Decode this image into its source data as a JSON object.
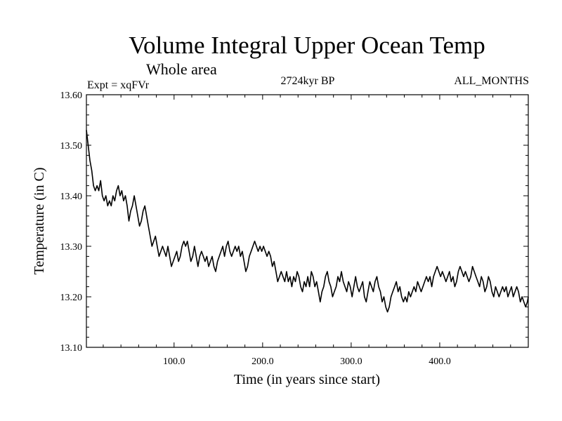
{
  "chart_data": {
    "type": "line",
    "title": "Volume Integral Upper Ocean Temp",
    "subtitle": "Whole area",
    "experiment": "Expt = xqFVr",
    "period": "2724kyr BP",
    "months": "ALL_MONTHS",
    "xlabel": "Time (in years since start)",
    "ylabel": "Temperature (in C)",
    "xlim": [
      1,
      500
    ],
    "ylim": [
      13.1,
      13.6
    ],
    "x_ticks": [
      100,
      200,
      300,
      400
    ],
    "x_tick_labels": [
      "100.0",
      "200.0",
      "300.0",
      "400.0"
    ],
    "y_ticks": [
      13.1,
      13.2,
      13.3,
      13.4,
      13.5,
      13.6
    ],
    "y_tick_labels": [
      "13.10",
      "13.20",
      "13.30",
      "13.40",
      "13.50",
      "13.60"
    ],
    "grid": false,
    "series": [
      {
        "name": "Volume Integral Upper Ocean Temp",
        "color": "#000000",
        "points": [
          [
            1,
            13.53
          ],
          [
            3,
            13.5
          ],
          [
            5,
            13.47
          ],
          [
            7,
            13.45
          ],
          [
            9,
            13.42
          ],
          [
            11,
            13.41
          ],
          [
            13,
            13.42
          ],
          [
            15,
            13.41
          ],
          [
            17,
            13.43
          ],
          [
            19,
            13.4
          ],
          [
            21,
            13.39
          ],
          [
            23,
            13.4
          ],
          [
            25,
            13.38
          ],
          [
            27,
            13.39
          ],
          [
            29,
            13.38
          ],
          [
            31,
            13.4
          ],
          [
            33,
            13.39
          ],
          [
            35,
            13.41
          ],
          [
            37,
            13.42
          ],
          [
            39,
            13.4
          ],
          [
            41,
            13.41
          ],
          [
            43,
            13.39
          ],
          [
            45,
            13.4
          ],
          [
            47,
            13.38
          ],
          [
            49,
            13.35
          ],
          [
            51,
            13.37
          ],
          [
            53,
            13.38
          ],
          [
            55,
            13.4
          ],
          [
            57,
            13.38
          ],
          [
            59,
            13.36
          ],
          [
            61,
            13.34
          ],
          [
            63,
            13.35
          ],
          [
            65,
            13.37
          ],
          [
            67,
            13.38
          ],
          [
            69,
            13.36
          ],
          [
            71,
            13.34
          ],
          [
            73,
            13.32
          ],
          [
            75,
            13.3
          ],
          [
            77,
            13.31
          ],
          [
            79,
            13.32
          ],
          [
            81,
            13.3
          ],
          [
            83,
            13.28
          ],
          [
            85,
            13.29
          ],
          [
            87,
            13.3
          ],
          [
            89,
            13.29
          ],
          [
            91,
            13.28
          ],
          [
            93,
            13.3
          ],
          [
            95,
            13.28
          ],
          [
            97,
            13.26
          ],
          [
            99,
            13.27
          ],
          [
            101,
            13.28
          ],
          [
            103,
            13.29
          ],
          [
            105,
            13.27
          ],
          [
            107,
            13.28
          ],
          [
            109,
            13.3
          ],
          [
            111,
            13.31
          ],
          [
            113,
            13.3
          ],
          [
            115,
            13.31
          ],
          [
            117,
            13.29
          ],
          [
            119,
            13.27
          ],
          [
            121,
            13.28
          ],
          [
            123,
            13.3
          ],
          [
            125,
            13.28
          ],
          [
            127,
            13.26
          ],
          [
            129,
            13.28
          ],
          [
            131,
            13.29
          ],
          [
            133,
            13.28
          ],
          [
            135,
            13.27
          ],
          [
            137,
            13.28
          ],
          [
            139,
            13.26
          ],
          [
            141,
            13.27
          ],
          [
            143,
            13.28
          ],
          [
            145,
            13.26
          ],
          [
            147,
            13.25
          ],
          [
            149,
            13.27
          ],
          [
            151,
            13.28
          ],
          [
            153,
            13.29
          ],
          [
            155,
            13.3
          ],
          [
            157,
            13.28
          ],
          [
            159,
            13.3
          ],
          [
            161,
            13.31
          ],
          [
            163,
            13.29
          ],
          [
            165,
            13.28
          ],
          [
            167,
            13.29
          ],
          [
            169,
            13.3
          ],
          [
            171,
            13.29
          ],
          [
            173,
            13.3
          ],
          [
            175,
            13.28
          ],
          [
            177,
            13.29
          ],
          [
            179,
            13.27
          ],
          [
            181,
            13.25
          ],
          [
            183,
            13.26
          ],
          [
            185,
            13.28
          ],
          [
            187,
            13.29
          ],
          [
            189,
            13.3
          ],
          [
            191,
            13.31
          ],
          [
            193,
            13.3
          ],
          [
            195,
            13.29
          ],
          [
            197,
            13.3
          ],
          [
            199,
            13.29
          ],
          [
            201,
            13.3
          ],
          [
            203,
            13.29
          ],
          [
            205,
            13.28
          ],
          [
            207,
            13.29
          ],
          [
            209,
            13.28
          ],
          [
            211,
            13.26
          ],
          [
            213,
            13.27
          ],
          [
            215,
            13.25
          ],
          [
            217,
            13.23
          ],
          [
            219,
            13.24
          ],
          [
            221,
            13.25
          ],
          [
            223,
            13.24
          ],
          [
            225,
            13.23
          ],
          [
            227,
            13.25
          ],
          [
            229,
            13.23
          ],
          [
            231,
            13.24
          ],
          [
            233,
            13.22
          ],
          [
            235,
            13.24
          ],
          [
            237,
            13.23
          ],
          [
            239,
            13.25
          ],
          [
            241,
            13.24
          ],
          [
            243,
            13.22
          ],
          [
            245,
            13.21
          ],
          [
            247,
            13.23
          ],
          [
            249,
            13.22
          ],
          [
            251,
            13.24
          ],
          [
            253,
            13.22
          ],
          [
            255,
            13.25
          ],
          [
            257,
            13.24
          ],
          [
            259,
            13.22
          ],
          [
            261,
            13.23
          ],
          [
            263,
            13.21
          ],
          [
            265,
            13.19
          ],
          [
            267,
            13.21
          ],
          [
            269,
            13.22
          ],
          [
            271,
            13.24
          ],
          [
            273,
            13.25
          ],
          [
            275,
            13.23
          ],
          [
            277,
            13.22
          ],
          [
            279,
            13.2
          ],
          [
            281,
            13.21
          ],
          [
            283,
            13.22
          ],
          [
            285,
            13.24
          ],
          [
            287,
            13.23
          ],
          [
            289,
            13.25
          ],
          [
            291,
            13.23
          ],
          [
            293,
            13.22
          ],
          [
            295,
            13.21
          ],
          [
            297,
            13.23
          ],
          [
            299,
            13.22
          ],
          [
            301,
            13.2
          ],
          [
            303,
            13.22
          ],
          [
            305,
            13.24
          ],
          [
            307,
            13.22
          ],
          [
            309,
            13.21
          ],
          [
            311,
            13.22
          ],
          [
            313,
            13.23
          ],
          [
            315,
            13.2
          ],
          [
            317,
            13.19
          ],
          [
            319,
            13.21
          ],
          [
            321,
            13.23
          ],
          [
            323,
            13.22
          ],
          [
            325,
            13.21
          ],
          [
            327,
            13.23
          ],
          [
            329,
            13.24
          ],
          [
            331,
            13.22
          ],
          [
            333,
            13.21
          ],
          [
            335,
            13.19
          ],
          [
            337,
            13.2
          ],
          [
            339,
            13.18
          ],
          [
            341,
            13.17
          ],
          [
            343,
            13.18
          ],
          [
            345,
            13.2
          ],
          [
            347,
            13.21
          ],
          [
            349,
            13.22
          ],
          [
            351,
            13.23
          ],
          [
            353,
            13.21
          ],
          [
            355,
            13.22
          ],
          [
            357,
            13.2
          ],
          [
            359,
            13.19
          ],
          [
            361,
            13.2
          ],
          [
            363,
            13.19
          ],
          [
            365,
            13.21
          ],
          [
            367,
            13.2
          ],
          [
            369,
            13.21
          ],
          [
            371,
            13.22
          ],
          [
            373,
            13.21
          ],
          [
            375,
            13.23
          ],
          [
            377,
            13.22
          ],
          [
            379,
            13.21
          ],
          [
            381,
            13.22
          ],
          [
            383,
            13.23
          ],
          [
            385,
            13.24
          ],
          [
            387,
            13.23
          ],
          [
            389,
            13.24
          ],
          [
            391,
            13.22
          ],
          [
            393,
            13.24
          ],
          [
            395,
            13.25
          ],
          [
            397,
            13.26
          ],
          [
            399,
            13.25
          ],
          [
            401,
            13.24
          ],
          [
            403,
            13.25
          ],
          [
            405,
            13.24
          ],
          [
            407,
            13.23
          ],
          [
            409,
            13.24
          ],
          [
            411,
            13.25
          ],
          [
            413,
            13.23
          ],
          [
            415,
            13.24
          ],
          [
            417,
            13.22
          ],
          [
            419,
            13.23
          ],
          [
            421,
            13.25
          ],
          [
            423,
            13.26
          ],
          [
            425,
            13.25
          ],
          [
            427,
            13.24
          ],
          [
            429,
            13.25
          ],
          [
            431,
            13.24
          ],
          [
            433,
            13.23
          ],
          [
            435,
            13.24
          ],
          [
            437,
            13.26
          ],
          [
            439,
            13.25
          ],
          [
            441,
            13.24
          ],
          [
            443,
            13.23
          ],
          [
            445,
            13.22
          ],
          [
            447,
            13.24
          ],
          [
            449,
            13.23
          ],
          [
            451,
            13.21
          ],
          [
            453,
            13.22
          ],
          [
            455,
            13.24
          ],
          [
            457,
            13.23
          ],
          [
            459,
            13.21
          ],
          [
            461,
            13.2
          ],
          [
            463,
            13.22
          ],
          [
            465,
            13.21
          ],
          [
            467,
            13.2
          ],
          [
            469,
            13.21
          ],
          [
            471,
            13.22
          ],
          [
            473,
            13.21
          ],
          [
            475,
            13.22
          ],
          [
            477,
            13.2
          ],
          [
            479,
            13.21
          ],
          [
            481,
            13.22
          ],
          [
            483,
            13.2
          ],
          [
            485,
            13.21
          ],
          [
            487,
            13.22
          ],
          [
            489,
            13.21
          ],
          [
            491,
            13.19
          ],
          [
            493,
            13.2
          ],
          [
            495,
            13.19
          ],
          [
            497,
            13.18
          ],
          [
            499,
            13.19
          ],
          [
            500,
            13.2
          ]
        ]
      }
    ]
  }
}
